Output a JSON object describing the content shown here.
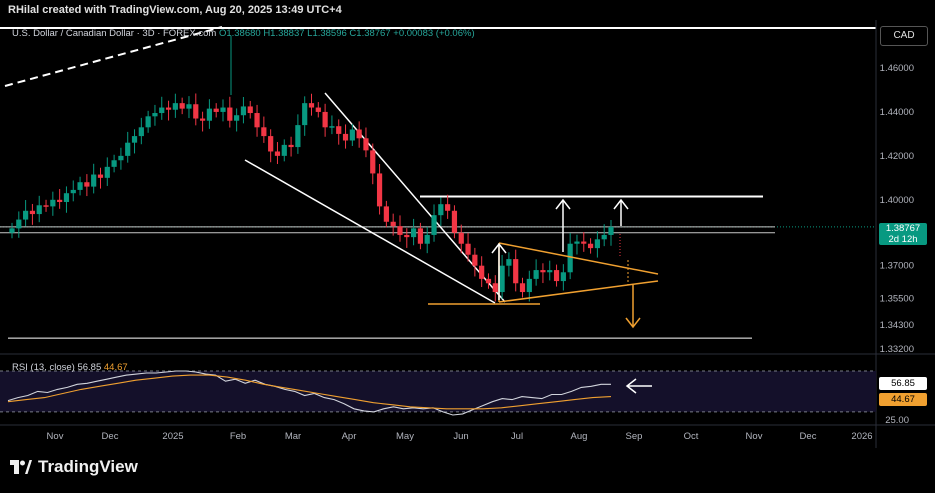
{
  "header": {
    "credit": "RHilal created with TradingView.com, Aug 20, 2025 13:49 UTC+4",
    "symbol": "U.S. Dollar / Canadian Dollar · 3D · FOREX.com",
    "ohlc": "O1.38680  H1.38837  L1.38596  C1.38767  +0.00083 (+0.06%)",
    "currency": "CAD"
  },
  "price_badge": {
    "price": "1.38767",
    "countdown": "2d 12h"
  },
  "rsi": {
    "label": "RSI (13, close)",
    "value": "56.85",
    "ma_value": "44.67"
  },
  "brand": {
    "name": "TradingView"
  },
  "colors": {
    "up": "#089981",
    "down": "#f23645",
    "pattern": "#f0a030",
    "rsi_ma": "#f0a030",
    "background": "#000000"
  },
  "chart_data": {
    "type": "candlestick",
    "symbol": "USDCAD",
    "timeframe": "3D",
    "price_axis": {
      "ticks": [
        "1.46000",
        "1.44000",
        "1.42000",
        "1.40000",
        "1.37000",
        "1.35500",
        "1.34300",
        "1.33200"
      ]
    },
    "rsi_axis": {
      "ticks": [
        "25.00"
      ]
    },
    "x_axis": {
      "ticks": [
        "Nov",
        "Dec",
        "2025",
        "Feb",
        "Mar",
        "Apr",
        "May",
        "Jun",
        "Jul",
        "Aug",
        "Sep",
        "Oct",
        "Nov",
        "Dec",
        "2026"
      ]
    },
    "candles_close": [
      1.387,
      1.391,
      1.395,
      1.3935,
      1.3975,
      1.397,
      1.4,
      1.399,
      1.403,
      1.4045,
      1.408,
      1.406,
      1.4115,
      1.41,
      1.415,
      1.418,
      1.42,
      1.426,
      1.429,
      1.433,
      1.438,
      1.4395,
      1.442,
      1.441,
      1.444,
      1.4415,
      1.4435,
      1.437,
      1.436,
      1.4415,
      1.44,
      1.442,
      1.436,
      1.4385,
      1.4425,
      1.4395,
      1.433,
      1.429,
      1.422,
      1.42,
      1.425,
      1.424,
      1.434,
      1.444,
      1.442,
      1.44,
      1.433,
      1.4335,
      1.43,
      1.427,
      1.432,
      1.428,
      1.4225,
      1.412,
      1.397,
      1.39,
      1.388,
      1.384,
      1.383,
      1.387,
      1.38,
      1.384,
      1.393,
      1.398,
      1.395,
      1.385,
      1.38,
      1.375,
      1.37,
      1.364,
      1.362,
      1.358,
      1.37,
      1.373,
      1.362,
      1.358,
      1.364,
      1.368,
      1.367,
      1.368,
      1.363,
      1.367,
      1.38,
      1.381,
      1.38,
      1.378,
      1.382,
      1.384,
      1.3877
    ],
    "levels": [
      1.4015,
      1.3877,
      1.385,
      1.337
    ],
    "rsi_values": [
      41,
      44,
      46,
      50,
      49,
      52,
      54,
      57,
      58,
      60,
      62,
      64,
      66,
      67,
      68,
      68,
      69,
      70,
      70,
      69,
      67,
      66,
      60,
      62,
      58,
      61,
      57,
      55,
      52,
      50,
      46,
      48,
      44,
      42,
      38,
      33,
      31,
      30,
      33,
      35,
      33,
      34,
      33,
      34,
      30,
      27,
      28,
      32,
      36,
      40,
      43,
      42,
      45,
      44,
      43,
      47,
      47,
      50,
      54,
      55,
      57,
      57
    ],
    "rsi_ma_values": [
      40,
      42,
      44,
      48,
      52,
      55,
      58,
      61,
      63,
      65,
      66,
      66,
      64,
      61,
      57,
      54,
      51,
      48,
      45,
      42,
      39,
      37,
      35,
      34,
      33,
      33,
      33,
      34,
      36,
      38,
      40,
      42,
      44,
      45
    ]
  }
}
